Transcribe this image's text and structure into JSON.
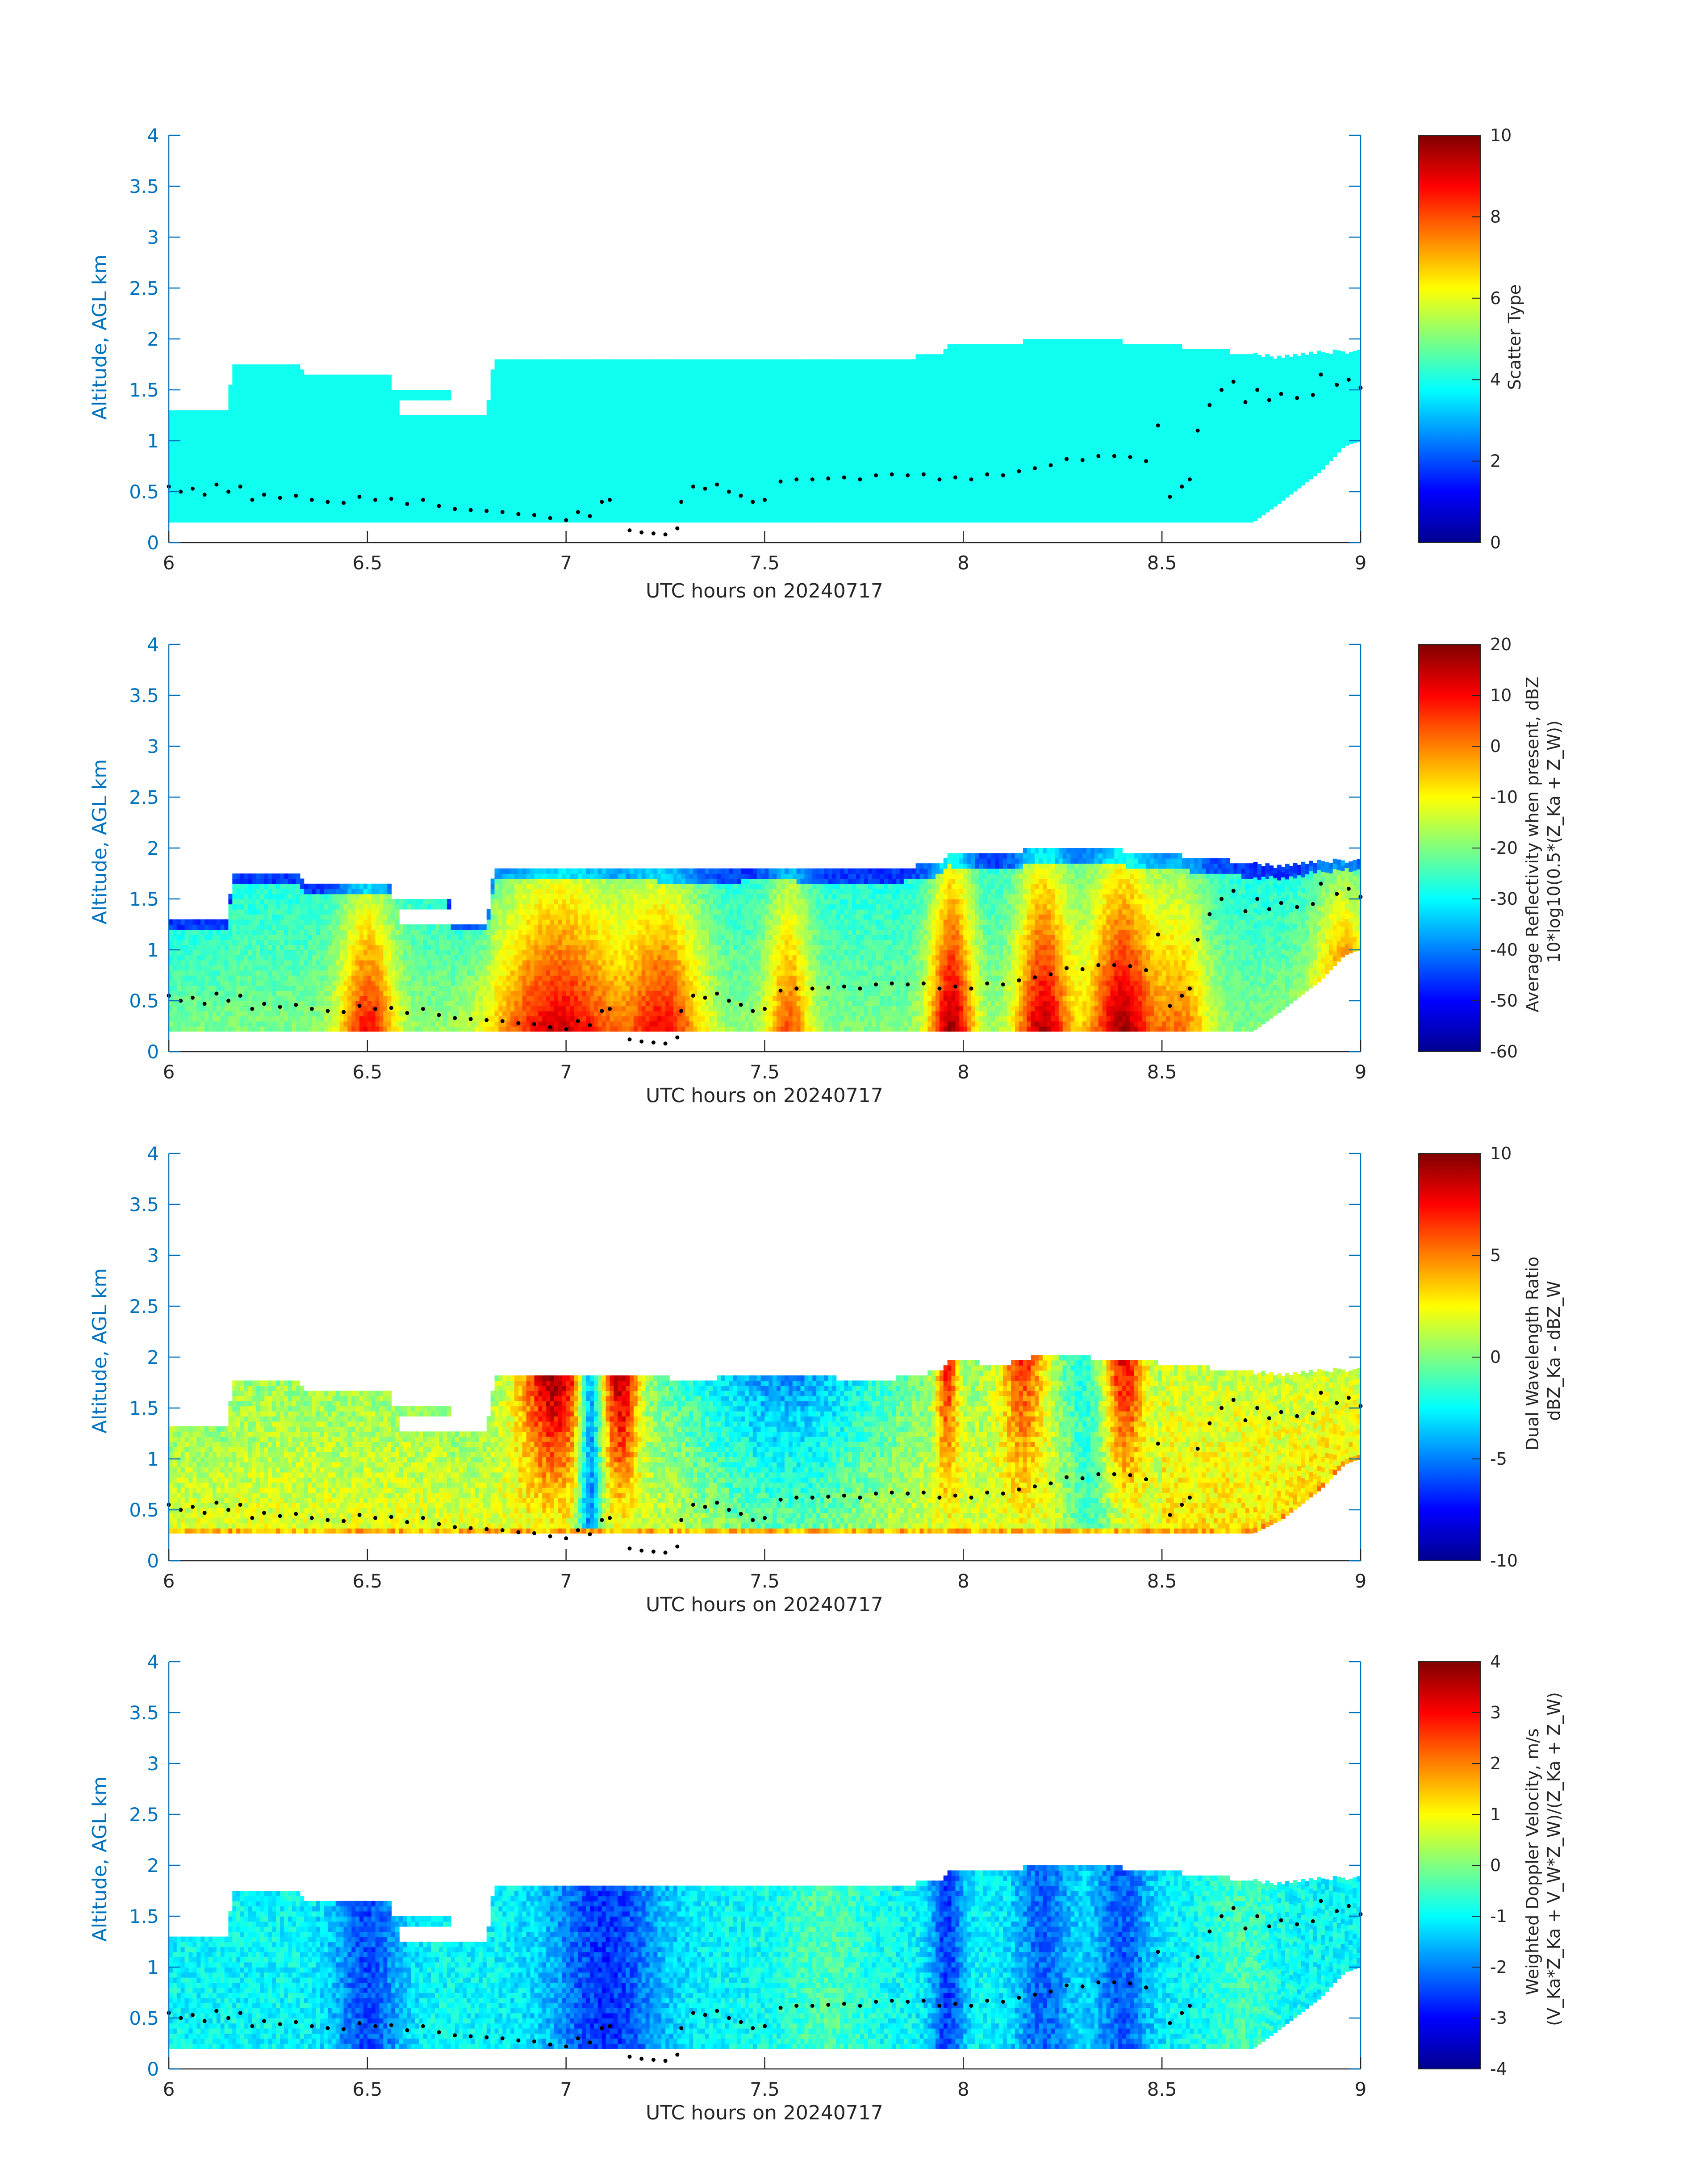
{
  "figure": {
    "date": "20240717"
  },
  "chart_data": [
    {
      "type": "heatmap",
      "quantity": "scatter_type",
      "xlabel": "UTC hours on 20240717",
      "ylabel": "Altitude, AGL km",
      "xlim": [
        6,
        9
      ],
      "ylim": [
        0,
        4
      ],
      "xticks": [
        "6",
        "6.5",
        "7",
        "7.5",
        "8",
        "8.5",
        "9"
      ],
      "yticks": [
        "0",
        "0.5",
        "1",
        "1.5",
        "2",
        "2.5",
        "3",
        "3.5",
        "4"
      ],
      "colorbar": {
        "label_lines": [
          "Scatter Type"
        ],
        "range": [
          0,
          10
        ],
        "ticks": [
          "0",
          "2",
          "4",
          "6",
          "8",
          "10"
        ],
        "colormap": "jet"
      }
    },
    {
      "type": "heatmap",
      "quantity": "average_reflectivity",
      "xlabel": "UTC hours on 20240717",
      "ylabel": "Altitude, AGL km",
      "xlim": [
        6,
        9
      ],
      "ylim": [
        0,
        4
      ],
      "xticks": [
        "6",
        "6.5",
        "7",
        "7.5",
        "8",
        "8.5",
        "9"
      ],
      "yticks": [
        "0",
        "0.5",
        "1",
        "1.5",
        "2",
        "2.5",
        "3",
        "3.5",
        "4"
      ],
      "colorbar": {
        "label_lines": [
          "Average Reflectivity when present, dBZ",
          "10*log10(0.5*(Z_Ka + Z_W))"
        ],
        "range": [
          -60,
          20
        ],
        "ticks": [
          "-60",
          "-50",
          "-40",
          "-30",
          "-20",
          "-10",
          "0",
          "10",
          "20"
        ],
        "colormap": "jet"
      }
    },
    {
      "type": "heatmap",
      "quantity": "dual_wavelength_ratio",
      "xlabel": "UTC hours on 20240717",
      "ylabel": "Altitude, AGL km",
      "xlim": [
        6,
        9
      ],
      "ylim": [
        0,
        4
      ],
      "xticks": [
        "6",
        "6.5",
        "7",
        "7.5",
        "8",
        "8.5",
        "9"
      ],
      "yticks": [
        "0",
        "0.5",
        "1",
        "1.5",
        "2",
        "2.5",
        "3",
        "3.5",
        "4"
      ],
      "colorbar": {
        "label_lines": [
          "Dual Wavelength Ratio",
          "dBZ_Ka - dBZ_W"
        ],
        "range": [
          -10,
          10
        ],
        "ticks": [
          "-10",
          "-5",
          "0",
          "5",
          "10"
        ],
        "colormap": "jet"
      }
    },
    {
      "type": "heatmap",
      "quantity": "weighted_doppler_velocity",
      "xlabel": "UTC hours on 20240717",
      "ylabel": "Altitude, AGL km",
      "xlim": [
        6,
        9
      ],
      "ylim": [
        0,
        4
      ],
      "xticks": [
        "6",
        "6.5",
        "7",
        "7.5",
        "8",
        "8.5",
        "9"
      ],
      "yticks": [
        "0",
        "0.5",
        "1",
        "1.5",
        "2",
        "2.5",
        "3",
        "3.5",
        "4"
      ],
      "colorbar": {
        "label_lines": [
          "Weighted Doppler Velocity, m/s",
          "(V_Ka*Z_Ka + V_W*Z_W)/(Z_Ka + Z_W)"
        ],
        "range": [
          -4,
          4
        ],
        "ticks": [
          "-4",
          "-3",
          "-2",
          "-1",
          "0",
          "1",
          "2",
          "3",
          "4"
        ],
        "colormap": "jet"
      }
    }
  ],
  "cloud": {
    "top_km": [
      [
        6.0,
        1.3
      ],
      [
        6.15,
        1.3
      ],
      [
        6.16,
        1.75
      ],
      [
        6.33,
        1.75
      ],
      [
        6.34,
        1.65
      ],
      [
        6.58,
        1.65
      ],
      [
        6.59,
        1.7
      ],
      [
        6.7,
        1.7
      ],
      [
        6.71,
        1.25
      ],
      [
        6.8,
        1.25
      ],
      [
        6.82,
        1.8
      ],
      [
        7.2,
        1.8
      ],
      [
        7.3,
        1.75
      ],
      [
        7.5,
        1.8
      ],
      [
        7.8,
        1.75
      ],
      [
        7.95,
        1.85
      ],
      [
        7.96,
        1.95
      ],
      [
        8.1,
        1.9
      ],
      [
        8.2,
        2.0
      ],
      [
        8.4,
        1.95
      ],
      [
        8.55,
        1.9
      ],
      [
        8.8,
        1.8
      ],
      [
        8.9,
        1.85
      ],
      [
        9.0,
        1.85
      ]
    ],
    "base_km": [
      [
        6.0,
        0.2
      ],
      [
        8.73,
        0.2
      ],
      [
        8.8,
        0.4
      ],
      [
        8.9,
        0.7
      ],
      [
        8.96,
        0.95
      ],
      [
        9.0,
        1.0
      ]
    ],
    "base_km_dwr": [
      [
        6.0,
        0.27
      ],
      [
        8.73,
        0.27
      ],
      [
        8.8,
        0.4
      ],
      [
        8.9,
        0.7
      ],
      [
        8.96,
        0.95
      ],
      [
        9.0,
        1.0
      ]
    ],
    "gaps": [
      {
        "x": [
          6.06,
          6.14
        ],
        "y": [
          1.55,
          1.85
        ]
      },
      {
        "x": [
          6.56,
          6.7
        ],
        "y": [
          1.52,
          1.8
        ]
      },
      {
        "x": [
          6.58,
          6.78
        ],
        "y": [
          1.25,
          1.4
        ]
      }
    ]
  },
  "markers_km": [
    [
      6.0,
      0.55
    ],
    [
      6.03,
      0.5
    ],
    [
      6.06,
      0.53
    ],
    [
      6.09,
      0.47
    ],
    [
      6.12,
      0.57
    ],
    [
      6.15,
      0.5
    ],
    [
      6.18,
      0.55
    ],
    [
      6.21,
      0.42
    ],
    [
      6.24,
      0.47
    ],
    [
      6.28,
      0.44
    ],
    [
      6.32,
      0.46
    ],
    [
      6.36,
      0.42
    ],
    [
      6.4,
      0.4
    ],
    [
      6.44,
      0.39
    ],
    [
      6.48,
      0.45
    ],
    [
      6.52,
      0.42
    ],
    [
      6.56,
      0.43
    ],
    [
      6.6,
      0.38
    ],
    [
      6.64,
      0.42
    ],
    [
      6.68,
      0.36
    ],
    [
      6.72,
      0.33
    ],
    [
      6.76,
      0.32
    ],
    [
      6.8,
      0.31
    ],
    [
      6.84,
      0.3
    ],
    [
      6.88,
      0.28
    ],
    [
      6.92,
      0.27
    ],
    [
      6.96,
      0.24
    ],
    [
      7.0,
      0.22
    ],
    [
      7.03,
      0.3
    ],
    [
      7.06,
      0.26
    ],
    [
      7.09,
      0.4
    ],
    [
      7.11,
      0.42
    ],
    [
      7.16,
      0.12
    ],
    [
      7.19,
      0.1
    ],
    [
      7.22,
      0.09
    ],
    [
      7.25,
      0.08
    ],
    [
      7.28,
      0.14
    ],
    [
      7.29,
      0.4
    ],
    [
      7.32,
      0.55
    ],
    [
      7.35,
      0.53
    ],
    [
      7.38,
      0.57
    ],
    [
      7.41,
      0.5
    ],
    [
      7.44,
      0.46
    ],
    [
      7.47,
      0.4
    ],
    [
      7.5,
      0.42
    ],
    [
      7.54,
      0.6
    ],
    [
      7.58,
      0.62
    ],
    [
      7.62,
      0.62
    ],
    [
      7.66,
      0.63
    ],
    [
      7.7,
      0.64
    ],
    [
      7.74,
      0.62
    ],
    [
      7.78,
      0.66
    ],
    [
      7.82,
      0.67
    ],
    [
      7.86,
      0.66
    ],
    [
      7.9,
      0.67
    ],
    [
      7.94,
      0.62
    ],
    [
      7.98,
      0.64
    ],
    [
      8.02,
      0.62
    ],
    [
      8.06,
      0.67
    ],
    [
      8.1,
      0.66
    ],
    [
      8.14,
      0.7
    ],
    [
      8.18,
      0.73
    ],
    [
      8.22,
      0.76
    ],
    [
      8.26,
      0.82
    ],
    [
      8.3,
      0.81
    ],
    [
      8.34,
      0.85
    ],
    [
      8.38,
      0.85
    ],
    [
      8.42,
      0.84
    ],
    [
      8.46,
      0.8
    ],
    [
      8.49,
      1.15
    ],
    [
      8.52,
      0.45
    ],
    [
      8.55,
      0.55
    ],
    [
      8.57,
      0.62
    ],
    [
      8.59,
      1.1
    ],
    [
      8.62,
      1.35
    ],
    [
      8.65,
      1.5
    ],
    [
      8.68,
      1.58
    ],
    [
      8.71,
      1.38
    ],
    [
      8.74,
      1.5
    ],
    [
      8.77,
      1.4
    ],
    [
      8.8,
      1.46
    ],
    [
      8.84,
      1.42
    ],
    [
      8.88,
      1.45
    ],
    [
      8.9,
      1.65
    ],
    [
      8.94,
      1.55
    ],
    [
      8.97,
      1.6
    ],
    [
      9.0,
      1.52
    ]
  ]
}
